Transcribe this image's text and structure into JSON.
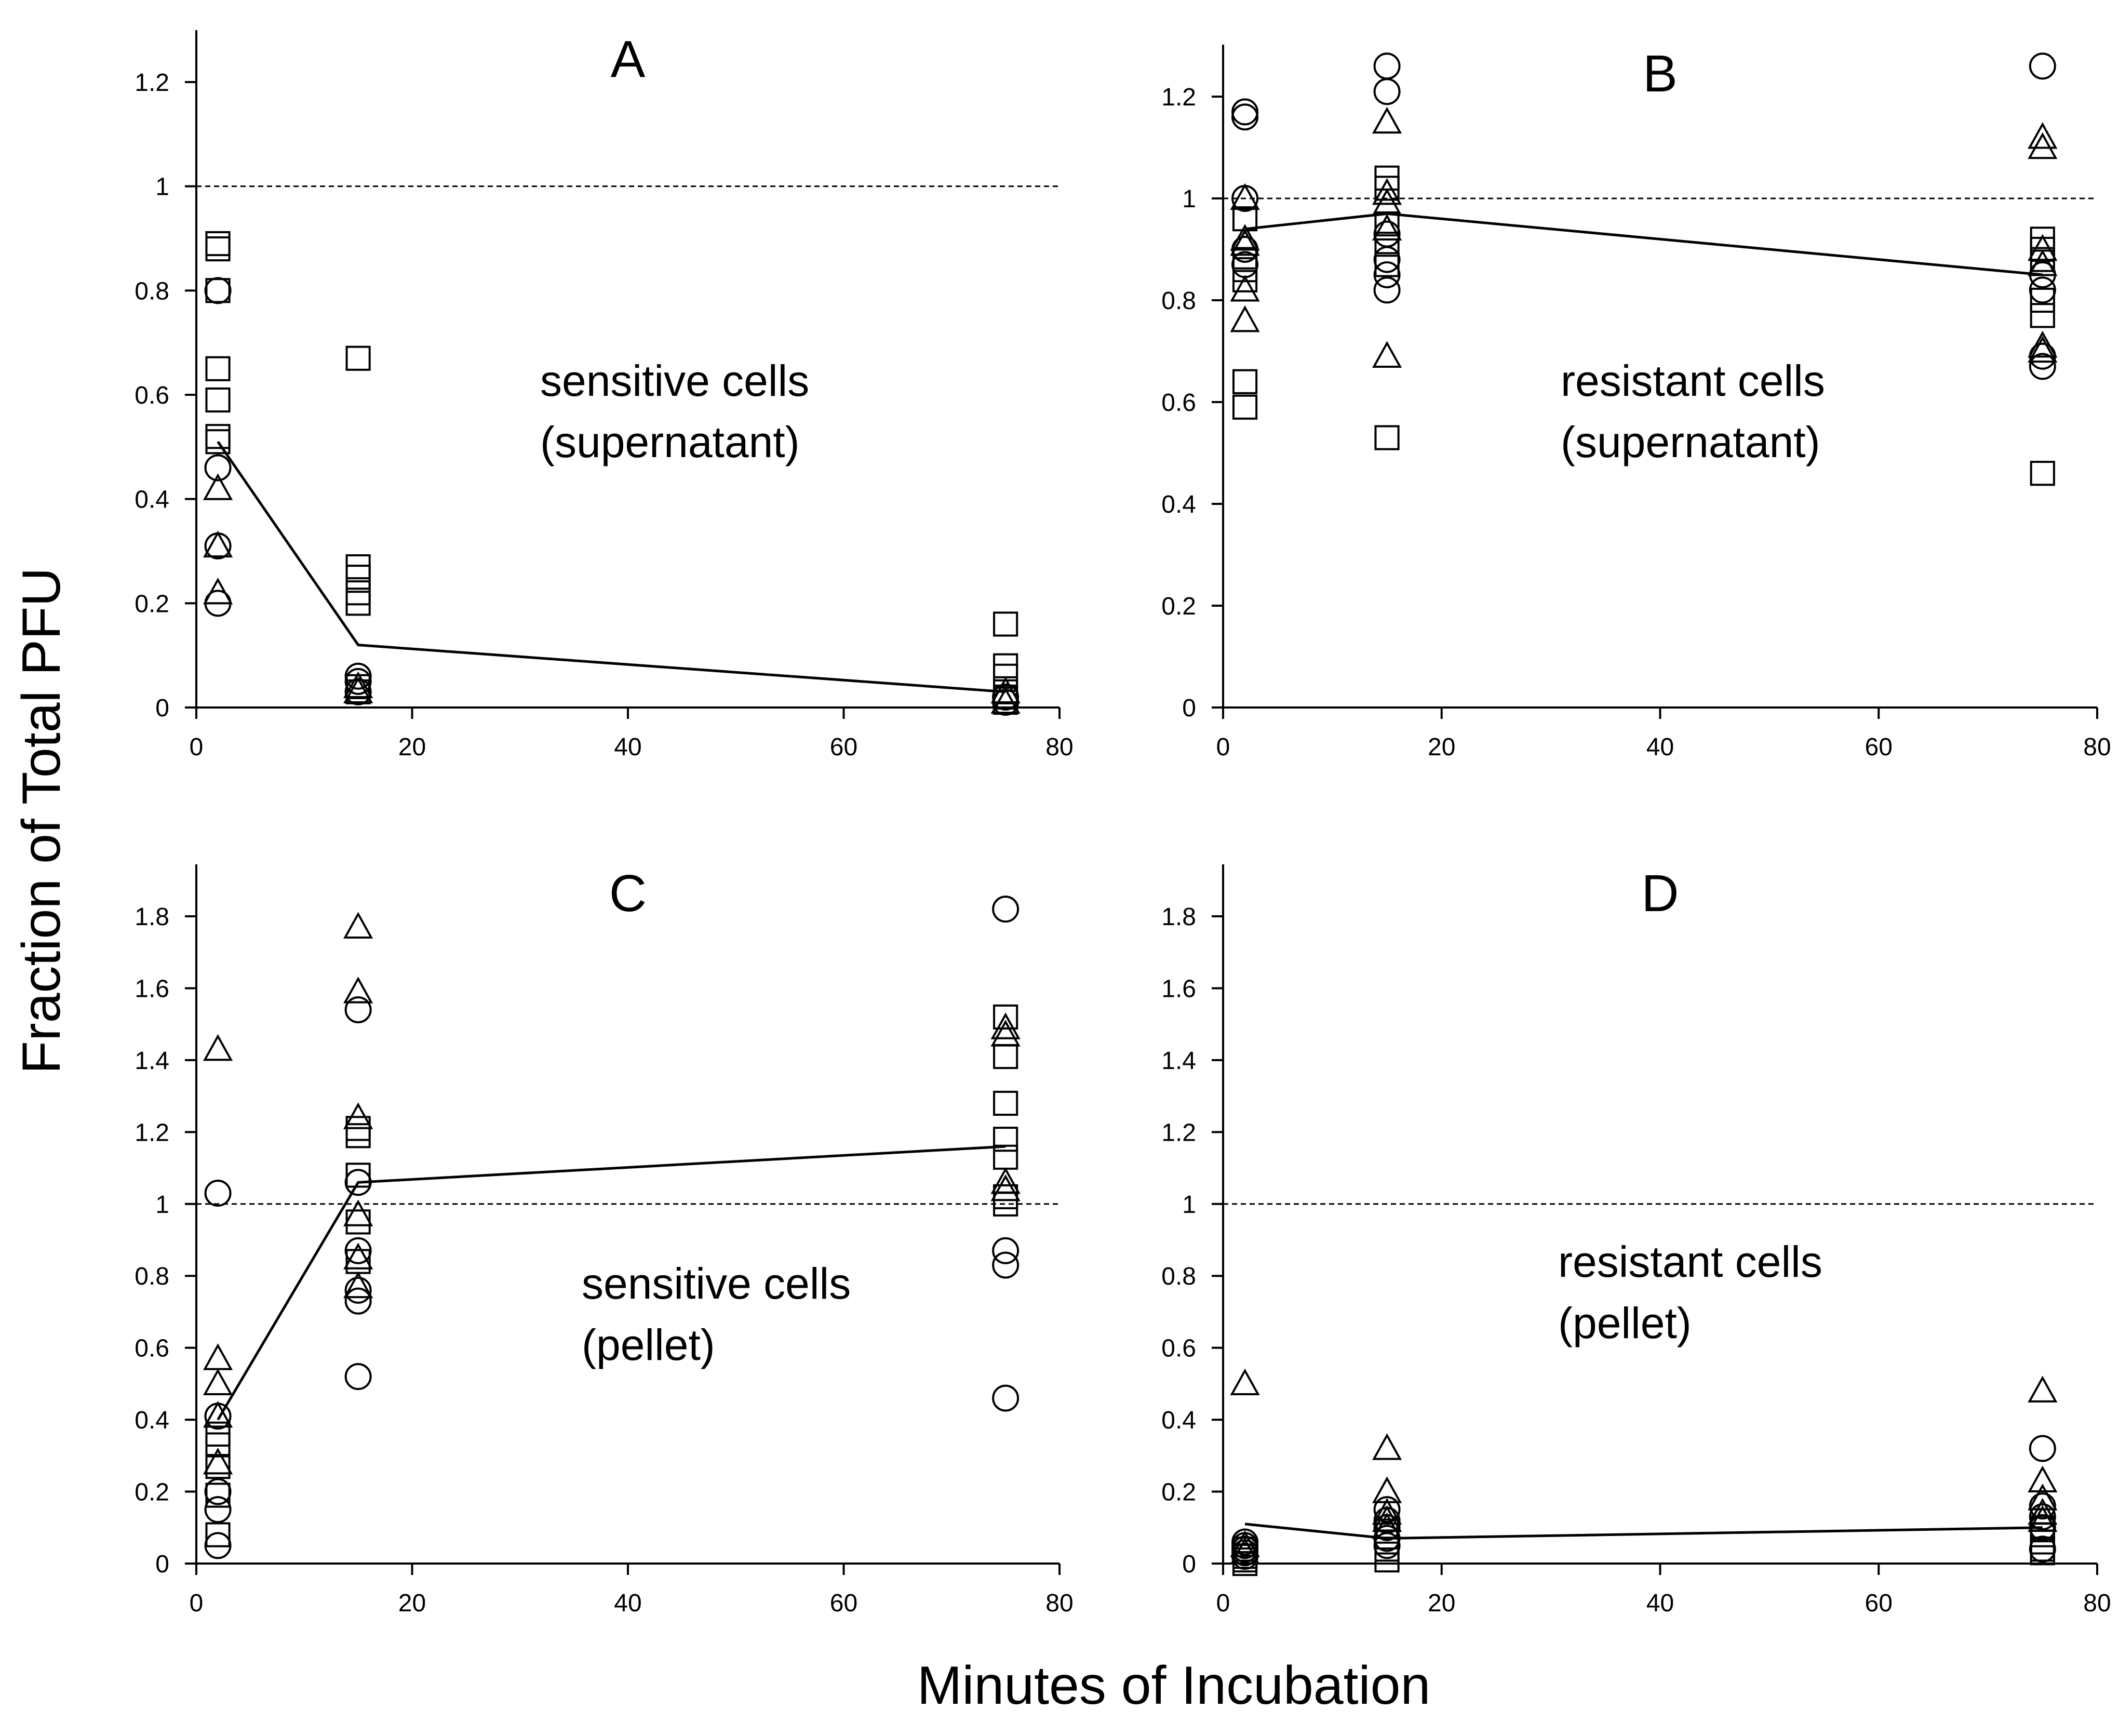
{
  "figure": {
    "ylabel": "Fraction of Total PFU",
    "xlabel": "Minutes of Incubation"
  },
  "chart_data": [
    {
      "panel": "A",
      "type": "scatter",
      "annotation": [
        "sensitive cells",
        "(supernatant)"
      ],
      "xlim": [
        0,
        80
      ],
      "ylim": [
        0,
        1.2
      ],
      "xticks": [
        0,
        20,
        40,
        60,
        80
      ],
      "yticks": [
        0,
        0.2,
        0.4,
        0.6,
        0.8,
        1,
        1.2
      ],
      "reference_line": 1,
      "series": [
        {
          "marker": "square",
          "points": [
            [
              2,
              0.89
            ],
            [
              2,
              0.88
            ],
            [
              2,
              0.8
            ],
            [
              2,
              0.65
            ],
            [
              2,
              0.59
            ],
            [
              2,
              0.52
            ],
            [
              2,
              0.51
            ],
            [
              15,
              0.67
            ],
            [
              15,
              0.27
            ],
            [
              15,
              0.25
            ],
            [
              15,
              0.22
            ],
            [
              15,
              0.2
            ],
            [
              15,
              0.04
            ],
            [
              15,
              0.03
            ],
            [
              75,
              0.16
            ],
            [
              75,
              0.08
            ],
            [
              75,
              0.06
            ],
            [
              75,
              0.03
            ],
            [
              75,
              0.02
            ],
            [
              75,
              0.01
            ]
          ]
        },
        {
          "marker": "circle",
          "points": [
            [
              2,
              0.8
            ],
            [
              2,
              0.46
            ],
            [
              2,
              0.31
            ],
            [
              2,
              0.2
            ],
            [
              15,
              0.06
            ],
            [
              15,
              0.05
            ],
            [
              15,
              0.03
            ],
            [
              75,
              0.02
            ],
            [
              75,
              0.01
            ]
          ]
        },
        {
          "marker": "triangle",
          "points": [
            [
              2,
              0.42
            ],
            [
              2,
              0.31
            ],
            [
              2,
              0.22
            ],
            [
              15,
              0.04
            ],
            [
              15,
              0.03
            ],
            [
              75,
              0.03
            ],
            [
              75,
              0.01
            ]
          ]
        },
        {
          "marker": "mean-line",
          "points": [
            [
              2,
              0.51
            ],
            [
              15,
              0.12
            ],
            [
              75,
              0.03
            ]
          ]
        }
      ]
    },
    {
      "panel": "B",
      "type": "scatter",
      "annotation": [
        "resistant cells",
        "(supernatant)"
      ],
      "xlim": [
        0,
        80
      ],
      "ylim": [
        0,
        1.2
      ],
      "xticks": [
        0,
        20,
        40,
        60,
        80
      ],
      "yticks": [
        0,
        0.2,
        0.4,
        0.6,
        0.8,
        1,
        1.2
      ],
      "reference_line": 1,
      "series": [
        {
          "marker": "square",
          "points": [
            [
              2,
              0.96
            ],
            [
              2,
              0.88
            ],
            [
              2,
              0.86
            ],
            [
              2,
              0.84
            ],
            [
              2,
              0.64
            ],
            [
              2,
              0.59
            ],
            [
              15,
              1.04
            ],
            [
              15,
              1.02
            ],
            [
              15,
              0.95
            ],
            [
              15,
              0.91
            ],
            [
              15,
              0.87
            ],
            [
              15,
              0.53
            ],
            [
              75,
              0.92
            ],
            [
              75,
              0.9
            ],
            [
              75,
              0.88
            ],
            [
              75,
              0.8
            ],
            [
              75,
              0.77
            ],
            [
              75,
              0.46
            ]
          ]
        },
        {
          "marker": "circle",
          "points": [
            [
              2,
              1.17
            ],
            [
              2,
              1.16
            ],
            [
              2,
              1.0
            ],
            [
              2,
              0.9
            ],
            [
              2,
              0.87
            ],
            [
              15,
              1.26
            ],
            [
              15,
              1.21
            ],
            [
              15,
              0.93
            ],
            [
              15,
              0.88
            ],
            [
              15,
              0.85
            ],
            [
              15,
              0.82
            ],
            [
              75,
              1.26
            ],
            [
              75,
              0.85
            ],
            [
              75,
              0.82
            ],
            [
              75,
              0.69
            ],
            [
              75,
              0.67
            ]
          ]
        },
        {
          "marker": "triangle",
          "points": [
            [
              2,
              1.0
            ],
            [
              2,
              0.92
            ],
            [
              2,
              0.91
            ],
            [
              2,
              0.82
            ],
            [
              2,
              0.76
            ],
            [
              15,
              1.15
            ],
            [
              15,
              1.01
            ],
            [
              15,
              0.99
            ],
            [
              15,
              0.94
            ],
            [
              15,
              0.69
            ],
            [
              75,
              1.12
            ],
            [
              75,
              1.1
            ],
            [
              75,
              0.9
            ],
            [
              75,
              0.87
            ],
            [
              75,
              0.71
            ],
            [
              75,
              0.7
            ]
          ]
        },
        {
          "marker": "mean-line",
          "points": [
            [
              2,
              0.94
            ],
            [
              15,
              0.97
            ],
            [
              75,
              0.85
            ]
          ]
        }
      ]
    },
    {
      "panel": "C",
      "type": "scatter",
      "annotation": [
        "sensitive cells",
        "(pellet)"
      ],
      "xlim": [
        0,
        80
      ],
      "ylim": [
        0,
        1.8
      ],
      "xticks": [
        0,
        20,
        40,
        60,
        80
      ],
      "yticks": [
        0,
        0.2,
        0.4,
        0.6,
        0.8,
        1,
        1.2,
        1.4,
        1.6,
        1.8
      ],
      "reference_line": 1,
      "series": [
        {
          "marker": "square",
          "points": [
            [
              2,
              0.36
            ],
            [
              2,
              0.33
            ],
            [
              2,
              0.27
            ],
            [
              2,
              0.19
            ],
            [
              2,
              0.08
            ],
            [
              15,
              1.21
            ],
            [
              15,
              1.19
            ],
            [
              15,
              1.08
            ],
            [
              15,
              0.95
            ],
            [
              15,
              0.84
            ],
            [
              75,
              1.52
            ],
            [
              75,
              1.41
            ],
            [
              75,
              1.28
            ],
            [
              75,
              1.18
            ],
            [
              75,
              1.13
            ],
            [
              75,
              1.02
            ],
            [
              75,
              1.0
            ]
          ]
        },
        {
          "marker": "circle",
          "points": [
            [
              2,
              1.03
            ],
            [
              2,
              0.41
            ],
            [
              2,
              0.2
            ],
            [
              2,
              0.15
            ],
            [
              2,
              0.05
            ],
            [
              15,
              1.54
            ],
            [
              15,
              1.06
            ],
            [
              15,
              0.87
            ],
            [
              15,
              0.76
            ],
            [
              15,
              0.73
            ],
            [
              15,
              0.52
            ],
            [
              75,
              1.82
            ],
            [
              75,
              0.87
            ],
            [
              75,
              0.83
            ],
            [
              75,
              0.46
            ]
          ]
        },
        {
          "marker": "triangle",
          "points": [
            [
              2,
              1.43
            ],
            [
              2,
              0.57
            ],
            [
              2,
              0.5
            ],
            [
              2,
              0.41
            ],
            [
              2,
              0.28
            ],
            [
              15,
              1.77
            ],
            [
              15,
              1.59
            ],
            [
              15,
              1.24
            ],
            [
              15,
              0.97
            ],
            [
              15,
              0.85
            ],
            [
              15,
              0.77
            ],
            [
              75,
              1.49
            ],
            [
              75,
              1.47
            ],
            [
              75,
              1.06
            ],
            [
              75,
              1.04
            ]
          ]
        },
        {
          "marker": "mean-line",
          "points": [
            [
              2,
              0.4
            ],
            [
              15,
              1.06
            ],
            [
              75,
              1.16
            ]
          ]
        }
      ]
    },
    {
      "panel": "D",
      "type": "scatter",
      "annotation": [
        "resistant cells",
        "(pellet)"
      ],
      "xlim": [
        0,
        80
      ],
      "ylim": [
        0,
        1.8
      ],
      "xticks": [
        0,
        20,
        40,
        60,
        80
      ],
      "yticks": [
        0,
        0.2,
        0.4,
        0.6,
        0.8,
        1,
        1.2,
        1.4,
        1.6,
        1.8
      ],
      "reference_line": 1,
      "series": [
        {
          "marker": "square",
          "points": [
            [
              2,
              0.04
            ],
            [
              2,
              0.02
            ],
            [
              2,
              0.01
            ],
            [
              2,
              0.0
            ],
            [
              15,
              0.09
            ],
            [
              15,
              0.06
            ],
            [
              15,
              0.04
            ],
            [
              15,
              0.01
            ],
            [
              75,
              0.1
            ],
            [
              75,
              0.08
            ],
            [
              75,
              0.06
            ],
            [
              75,
              0.04
            ],
            [
              75,
              0.03
            ]
          ]
        },
        {
          "marker": "circle",
          "points": [
            [
              2,
              0.06
            ],
            [
              2,
              0.05
            ],
            [
              2,
              0.04
            ],
            [
              2,
              0.03
            ],
            [
              2,
              0.02
            ],
            [
              15,
              0.15
            ],
            [
              15,
              0.12
            ],
            [
              15,
              0.1
            ],
            [
              15,
              0.07
            ],
            [
              15,
              0.05
            ],
            [
              75,
              0.32
            ],
            [
              75,
              0.16
            ],
            [
              75,
              0.13
            ],
            [
              75,
              0.1
            ],
            [
              75,
              0.04
            ]
          ]
        },
        {
          "marker": "triangle",
          "points": [
            [
              2,
              0.5
            ],
            [
              2,
              0.05
            ],
            [
              2,
              0.03
            ],
            [
              15,
              0.32
            ],
            [
              15,
              0.2
            ],
            [
              15,
              0.14
            ],
            [
              15,
              0.12
            ],
            [
              15,
              0.1
            ],
            [
              75,
              0.48
            ],
            [
              75,
              0.23
            ],
            [
              75,
              0.18
            ],
            [
              75,
              0.14
            ],
            [
              75,
              0.12
            ]
          ]
        },
        {
          "marker": "mean-line",
          "points": [
            [
              2,
              0.11
            ],
            [
              15,
              0.07
            ],
            [
              75,
              0.1
            ]
          ]
        }
      ]
    }
  ]
}
